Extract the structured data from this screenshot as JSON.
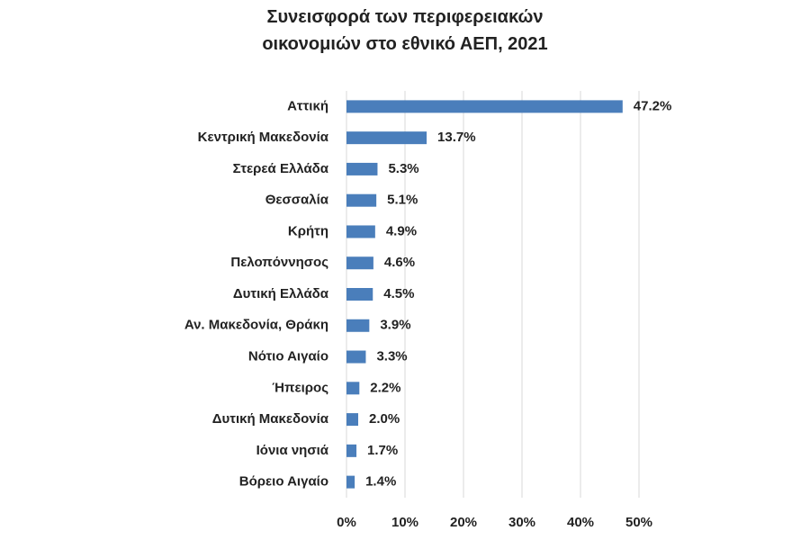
{
  "chart_data": {
    "type": "bar",
    "orientation": "horizontal",
    "title": "Συνεισφορά των περιφερειακών οικονομιών στο εθνικό ΑΕΠ, 2021",
    "categories": [
      "Αττική",
      "Κεντρική Μακεδονία",
      "Στερεά Ελλάδα",
      "Θεσσαλία",
      "Κρήτη",
      "Πελοπόννησος",
      "Δυτική Ελλάδα",
      "Αν. Μακεδονία, Θράκη",
      "Νότιο Αιγαίο",
      "Ήπειρος",
      "Δυτική Μακεδονία",
      "Ιόνια νησιά",
      "Βόρειο Αιγαίο"
    ],
    "values": [
      47.2,
      13.7,
      5.3,
      5.1,
      4.9,
      4.6,
      4.5,
      3.9,
      3.3,
      2.2,
      2.0,
      1.7,
      1.4
    ],
    "value_labels": [
      "47.2%",
      "13.7%",
      "5.3%",
      "5.1%",
      "4.9%",
      "4.6%",
      "4.5%",
      "3.9%",
      "3.3%",
      "2.2%",
      "2.0%",
      "1.7%",
      "1.4%"
    ],
    "color": "#4a7ebb",
    "xlim": [
      0,
      50
    ],
    "xticks": [
      {
        "value": 0,
        "label": "0%"
      },
      {
        "value": 10,
        "label": "10%"
      },
      {
        "value": 20,
        "label": "20%"
      },
      {
        "value": 30,
        "label": "30%"
      },
      {
        "value": 40,
        "label": "40%"
      },
      {
        "value": 50,
        "label": "50%"
      }
    ],
    "grid": true
  }
}
